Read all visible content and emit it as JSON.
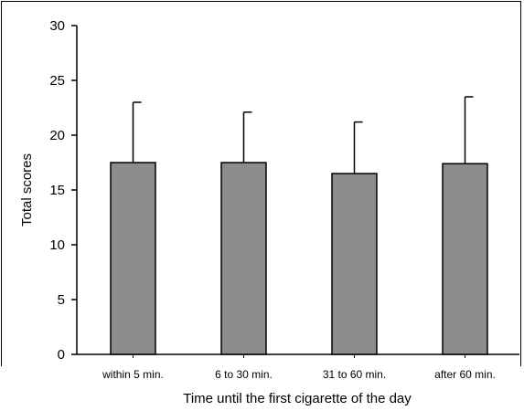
{
  "chart_data": {
    "type": "bar",
    "categories": [
      "within 5 min.",
      "6 to 30 min.",
      "31 to 60 min.",
      "after 60 min."
    ],
    "values": [
      17.5,
      17.5,
      16.5,
      17.4
    ],
    "errors": [
      5.5,
      4.6,
      4.7,
      6.1
    ],
    "xlabel": "Time until the first cigarette of the day",
    "ylabel": "Total scores",
    "ylim": [
      0,
      30
    ],
    "yticks": [
      0,
      5,
      10,
      15,
      20,
      25,
      30
    ],
    "grid": false,
    "bar_color": "#8c8c8c",
    "edge_color": "#000000"
  }
}
